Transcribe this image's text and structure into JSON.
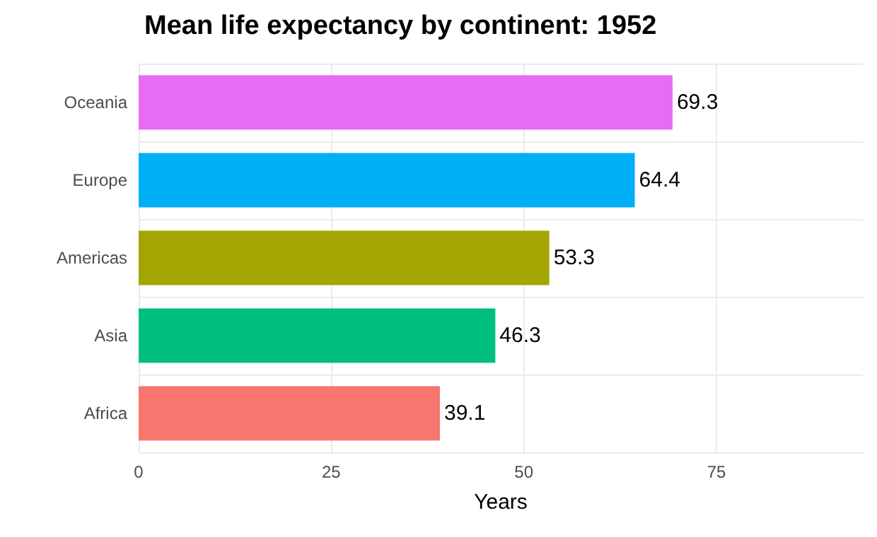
{
  "chart_data": {
    "type": "bar",
    "orientation": "horizontal",
    "title": "Mean life expectancy by continent: 1952",
    "xlabel": "Years",
    "categories": [
      "Oceania",
      "Europe",
      "Americas",
      "Asia",
      "Africa"
    ],
    "values": [
      69.3,
      64.4,
      53.3,
      46.3,
      39.1
    ],
    "colors": [
      "#e76bf3",
      "#00b0f6",
      "#a3a500",
      "#00bf7d",
      "#f8766d"
    ],
    "xlim": [
      0,
      94
    ],
    "xticks": [
      0,
      25,
      50,
      75
    ],
    "grid": true,
    "data_labels": true
  }
}
